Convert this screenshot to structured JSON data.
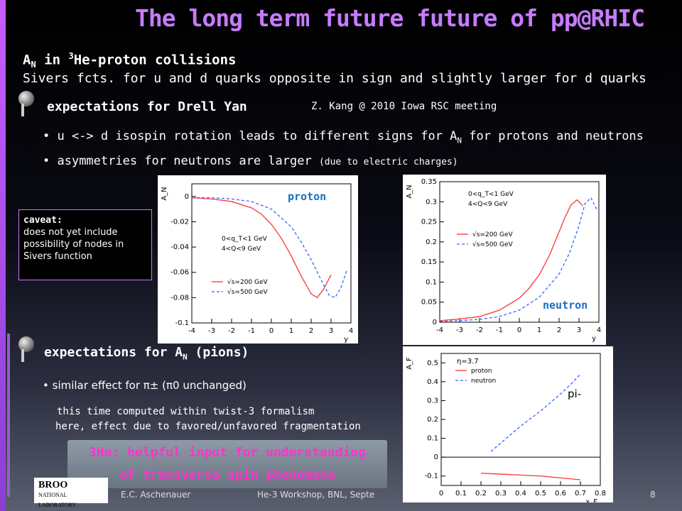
{
  "title": "The long term future future of pp@RHIC",
  "intro": {
    "line1_prefix": "A",
    "line1_sub": "N",
    "line1_mid": " in ",
    "line1_sup": "3",
    "line1_suffix": "He-proton collisions",
    "line2": "Sivers fcts. for u and d quarks opposite in sign and slightly larger for d quarks"
  },
  "section1": {
    "heading": "expectations for Drell Yan",
    "citation": "Z. Kang @ 2010 Iowa RSC meeting",
    "bullets": [
      {
        "prefix": "u <-> d isospin rotation leads to different signs for A",
        "sub": "N",
        "suffix": " for protons and neutrons"
      },
      {
        "text": "asymmetries for neutrons are larger ",
        "small": "(due to electric charges)"
      }
    ]
  },
  "caveat": {
    "heading": "caveat:",
    "body": "does not yet include possibility of nodes in Sivers function"
  },
  "section2": {
    "heading_prefix": "expectations for A",
    "heading_sub": "N",
    "heading_suffix": " (pions)",
    "bullet": "similar effect for π± (π0 unchanged)",
    "para1": "this time computed within twist-3 formalism",
    "para2": "here, effect due to favored/unfavored fragmentation"
  },
  "highlight": {
    "line1": "3He: helpful input for understanding",
    "line2": "of transverse spin phenomena"
  },
  "footer": {
    "author": "E.C. Aschenauer",
    "event": "He-3 Workshop, BNL, Septe",
    "page": "8",
    "logo_main": "BROO",
    "logo_sub": "NATIONAL LABORATORY"
  },
  "chart_data": [
    {
      "type": "line",
      "label": "proton",
      "ylabel": "A_N",
      "xlabel": "y",
      "xlim": [
        -4,
        4
      ],
      "ylim": [
        -0.1,
        0.01
      ],
      "xticks": [
        "-4",
        "-3",
        "-2",
        "-1",
        "0",
        "1",
        "2",
        "3",
        "4"
      ],
      "yticks": [
        "0",
        "-0.02",
        "-0.04",
        "-0.06",
        "-0.08",
        "-0.1"
      ],
      "kinematics": [
        "0<q_T<1 GeV",
        "4<Q<9 GeV"
      ],
      "series": [
        {
          "name": "√s=200 GeV",
          "color": "#ff3333",
          "dash": "none",
          "x": [
            -4,
            -3,
            -2,
            -1,
            -0.5,
            0,
            0.5,
            1,
            1.5,
            2,
            2.3,
            2.6,
            3
          ],
          "y": [
            -0.001,
            -0.002,
            -0.004,
            -0.009,
            -0.014,
            -0.022,
            -0.033,
            -0.047,
            -0.063,
            -0.077,
            -0.08,
            -0.074,
            -0.062
          ]
        },
        {
          "name": "√s=500 GeV",
          "color": "#3366ff",
          "dash": "4,3",
          "x": [
            -4,
            -3,
            -2,
            -1,
            0,
            1,
            1.5,
            2,
            2.5,
            2.9,
            3.2,
            3.5,
            3.8
          ],
          "y": [
            -0.001,
            -0.001,
            -0.002,
            -0.004,
            -0.01,
            -0.024,
            -0.036,
            -0.05,
            -0.066,
            -0.078,
            -0.08,
            -0.072,
            -0.058
          ]
        }
      ]
    },
    {
      "type": "line",
      "label": "neutron",
      "ylabel": "A_N",
      "xlabel": "y",
      "xlim": [
        -4,
        4
      ],
      "ylim": [
        0,
        0.35
      ],
      "xticks": [
        "-4",
        "-3",
        "-2",
        "-1",
        "0",
        "1",
        "2",
        "3",
        "4"
      ],
      "yticks": [
        "0",
        "0.05",
        "0.1",
        "0.15",
        "0.2",
        "0.25",
        "0.3",
        "0.35"
      ],
      "kinematics": [
        "0<q_T<1 GeV",
        "4<Q<9 GeV"
      ],
      "series": [
        {
          "name": "√s=200 GeV",
          "color": "#ff3333",
          "dash": "none",
          "x": [
            -4,
            -3,
            -2,
            -1,
            0,
            0.5,
            1,
            1.5,
            2,
            2.3,
            2.6,
            2.9,
            3.2
          ],
          "y": [
            0.004,
            0.008,
            0.014,
            0.03,
            0.06,
            0.085,
            0.118,
            0.165,
            0.225,
            0.262,
            0.292,
            0.305,
            0.29
          ]
        },
        {
          "name": "√s=500 GeV",
          "color": "#3366ff",
          "dash": "4,3",
          "x": [
            -4,
            -3,
            -2,
            -1,
            0,
            1,
            2,
            2.5,
            3,
            3.3,
            3.6,
            3.9
          ],
          "y": [
            0.002,
            0.004,
            0.007,
            0.014,
            0.03,
            0.062,
            0.12,
            0.17,
            0.24,
            0.295,
            0.31,
            0.28
          ]
        }
      ]
    },
    {
      "type": "line",
      "label": "pi-",
      "ylabel": "A_F",
      "xlabel": "x_F",
      "xlim": [
        0,
        0.8
      ],
      "ylim": [
        -0.15,
        0.55
      ],
      "xticks": [
        "0",
        "0.1",
        "0.2",
        "0.3",
        "0.4",
        "0.5",
        "0.6",
        "0.7",
        "0.8"
      ],
      "yticks": [
        "0.5",
        "0.4",
        "0.3",
        "0.2",
        "0.1",
        "0",
        "-0.1"
      ],
      "annotation": "η=3.7",
      "series": [
        {
          "name": "proton",
          "color": "#ff3333",
          "dash": "none",
          "x": [
            0.2,
            0.3,
            0.4,
            0.5,
            0.6,
            0.7
          ],
          "y": [
            -0.085,
            -0.09,
            -0.095,
            -0.1,
            -0.11,
            -0.12
          ]
        },
        {
          "name": "neutron",
          "color": "#3366ff",
          "dash": "4,3",
          "x": [
            0.25,
            0.3,
            0.35,
            0.4,
            0.45,
            0.5,
            0.55,
            0.6,
            0.65,
            0.7
          ],
          "y": [
            0.03,
            0.075,
            0.12,
            0.165,
            0.205,
            0.245,
            0.29,
            0.335,
            0.385,
            0.44
          ]
        }
      ]
    }
  ]
}
